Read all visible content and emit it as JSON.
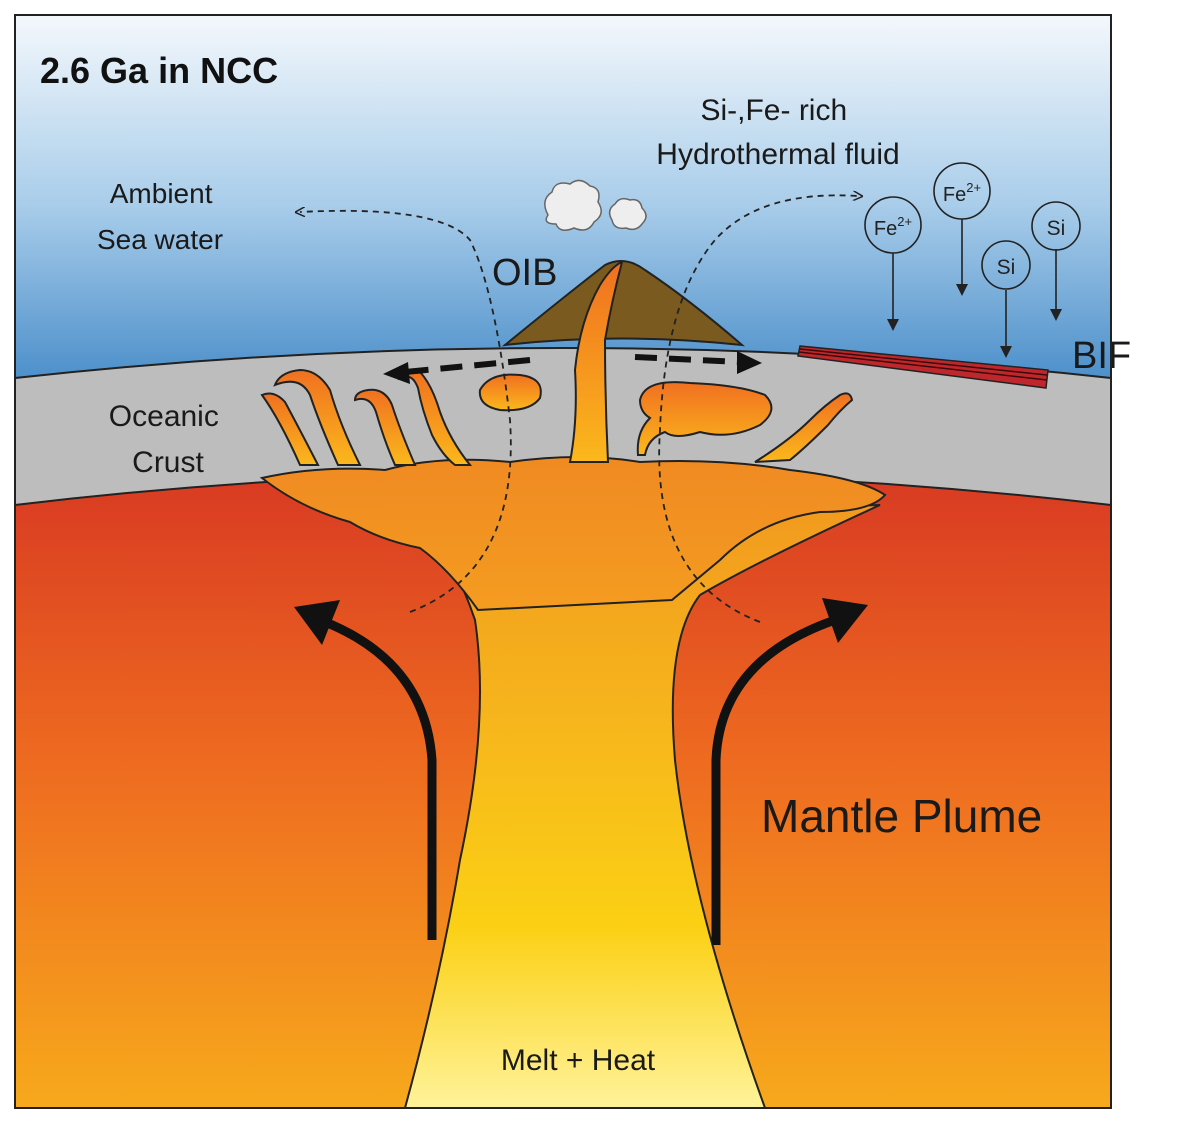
{
  "title": "2.6 Ga in NCC",
  "labels": {
    "ambient": [
      "Ambient",
      "Sea water"
    ],
    "fluid": [
      "Si-,Fe- rich",
      "Hydrothermal fluid"
    ],
    "oib": "OIB",
    "bif": "BIF",
    "crust": [
      "Oceanic",
      "Crust"
    ],
    "plume": "Mantle Plume",
    "melt": "Melt + Heat"
  },
  "ions": [
    {
      "base": "Fe",
      "sup": "2+"
    },
    {
      "base": "Fe",
      "sup": "2+"
    },
    {
      "base": "Si",
      "sup": ""
    },
    {
      "base": "Si",
      "sup": ""
    }
  ],
  "colors": {
    "sea_top": "#f4f8fc",
    "sea_bottom": "#2f7cc0",
    "crust": "#bdbdbd",
    "mantle_top": "#d83a22",
    "mantle_bottom": "#f5a21c",
    "plume_core": "#fbd014",
    "volcano": "#7a5a1e",
    "bif": "#c0272d"
  }
}
